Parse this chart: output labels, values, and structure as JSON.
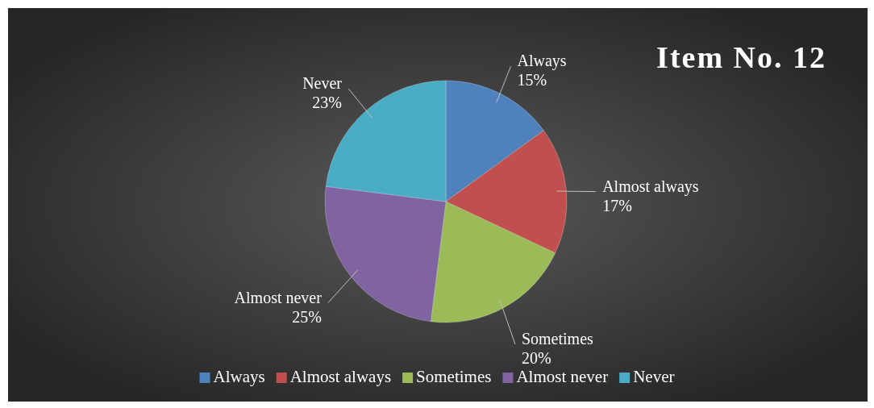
{
  "chart_data": {
    "type": "pie",
    "title": "Item No. 12",
    "categories": [
      "Always",
      "Almost always",
      "Sometimes",
      "Almost never",
      "Never"
    ],
    "values": [
      15,
      17,
      20,
      25,
      23
    ],
    "colors": [
      "#4f81bd",
      "#c0504d",
      "#9bbb59",
      "#8064a2",
      "#4bacc6"
    ],
    "value_labels": [
      "15%",
      "17%",
      "20%",
      "25%",
      "23%"
    ],
    "legend": "bottom"
  }
}
